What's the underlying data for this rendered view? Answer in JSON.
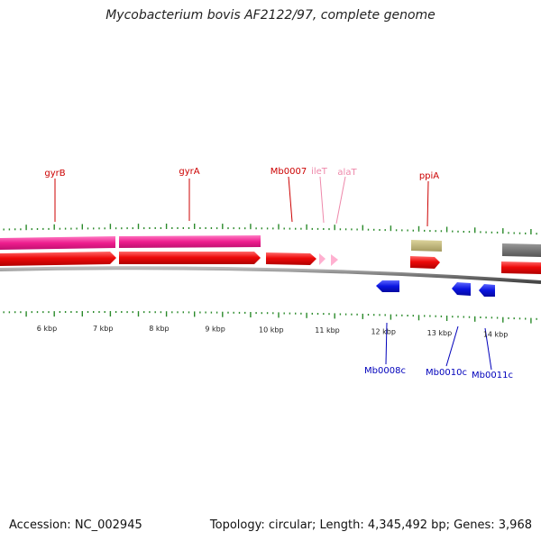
{
  "title": "Mycobacterium bovis AF2122/97, complete genome",
  "footer": {
    "accession": "Accession: NC_002945",
    "summary": "Topology: circular; Length: 4,345,492 bp; Genes: 3,968"
  },
  "colors": {
    "forward_gene": "#e8000b",
    "reverse_gene": "#0a14e0",
    "cds_band": "#ee1d8e",
    "trna": "#ffb0d0",
    "misc_feature": "#bfb47a",
    "contig": "#666666",
    "backbone": "#777777",
    "tick": "#2a8a2a",
    "label_forward": "#cc0000",
    "label_trna": "#ee88aa",
    "label_reverse": "#0000bb"
  },
  "scale_labels": [
    {
      "text": "6 kbp",
      "kbp": 6
    },
    {
      "text": "7 kbp",
      "kbp": 7
    },
    {
      "text": "8 kbp",
      "kbp": 8
    },
    {
      "text": "9 kbp",
      "kbp": 9
    },
    {
      "text": "10 kbp",
      "kbp": 10
    },
    {
      "text": "11 kbp",
      "kbp": 11
    },
    {
      "text": "12 kbp",
      "kbp": 12
    },
    {
      "text": "13 kbp",
      "kbp": 13
    },
    {
      "text": "14 kbp",
      "kbp": 14
    }
  ],
  "genes": [
    {
      "name": "gyrB",
      "strand": "+",
      "type": "gene",
      "label_color": "forward"
    },
    {
      "name": "gyrA",
      "strand": "+",
      "type": "gene",
      "label_color": "forward"
    },
    {
      "name": "Mb0007",
      "strand": "+",
      "type": "gene",
      "label_color": "forward"
    },
    {
      "name": "ileT",
      "strand": "+",
      "type": "tRNA",
      "label_color": "trna"
    },
    {
      "name": "alaT",
      "strand": "+",
      "type": "tRNA",
      "label_color": "trna"
    },
    {
      "name": "ppiA",
      "strand": "+",
      "type": "gene",
      "label_color": "forward"
    },
    {
      "name": "Mb0008c",
      "strand": "-",
      "type": "gene",
      "label_color": "reverse"
    },
    {
      "name": "Mb0010c",
      "strand": "-",
      "type": "gene",
      "label_color": "reverse"
    },
    {
      "name": "Mb0011c",
      "strand": "-",
      "type": "gene",
      "label_color": "reverse"
    }
  ]
}
